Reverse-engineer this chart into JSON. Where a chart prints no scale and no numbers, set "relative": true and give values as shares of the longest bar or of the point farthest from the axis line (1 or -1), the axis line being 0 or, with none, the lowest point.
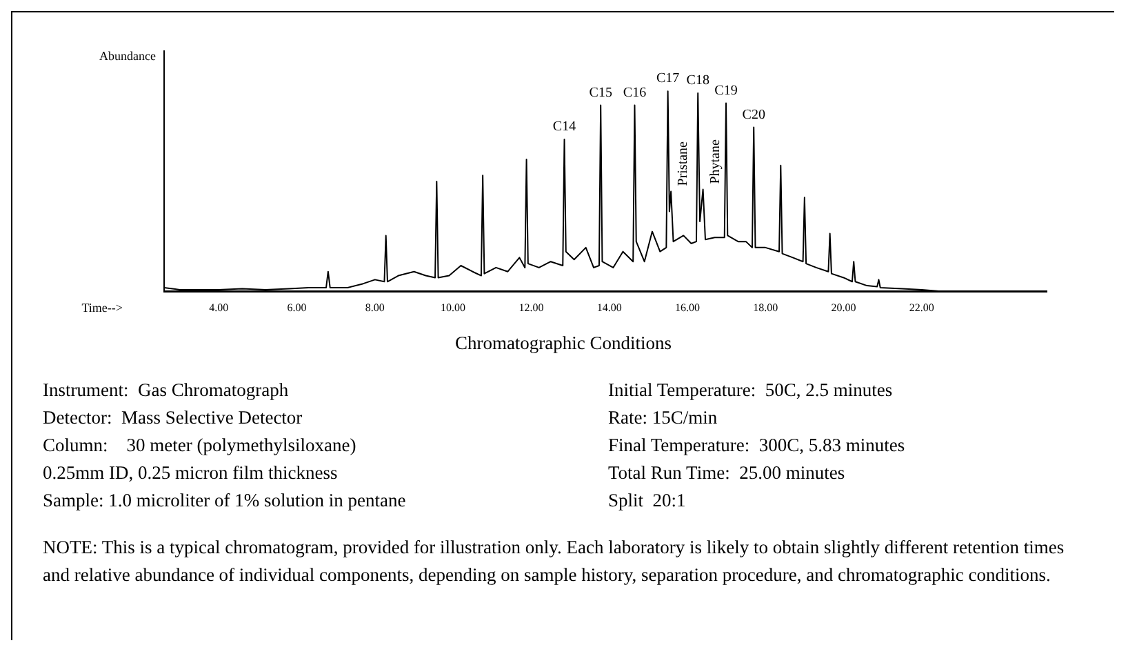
{
  "chart_data": {
    "type": "line",
    "relative": true,
    "xlabel": "Time-->",
    "ylabel": "Abundance",
    "color": "#000000",
    "marker": "none",
    "line_style": "solid",
    "grid": false,
    "legend": false,
    "tick_labels": "x",
    "xlim": [
      2.6,
      25.2
    ],
    "xticks": [
      {
        "value": 4,
        "label": "4.00"
      },
      {
        "value": 6,
        "label": "6.00"
      },
      {
        "value": 8,
        "label": "8.00"
      },
      {
        "value": 10,
        "label": "10.00"
      },
      {
        "value": 12,
        "label": "12.00"
      },
      {
        "value": 14,
        "label": "14.00"
      },
      {
        "value": 16,
        "label": "16.00"
      },
      {
        "value": 18,
        "label": "18.00"
      },
      {
        "value": 20,
        "label": "20.00"
      },
      {
        "value": 22,
        "label": "22.00"
      }
    ],
    "x": [
      2.6,
      3.0,
      3.5,
      4.0,
      4.6,
      5.2,
      5.8,
      6.3,
      6.75,
      6.8,
      6.85,
      7.3,
      7.7,
      8.0,
      8.24,
      8.28,
      8.32,
      8.6,
      9.0,
      9.3,
      9.54,
      9.58,
      9.62,
      9.9,
      10.2,
      10.5,
      10.72,
      10.76,
      10.8,
      11.1,
      11.4,
      11.7,
      11.84,
      11.88,
      11.92,
      12.2,
      12.5,
      12.81,
      12.85,
      12.89,
      13.1,
      13.4,
      13.6,
      13.74,
      13.78,
      13.82,
      14.1,
      14.35,
      14.61,
      14.65,
      14.69,
      14.9,
      15.1,
      15.3,
      15.46,
      15.5,
      15.54,
      15.58,
      15.64,
      15.9,
      16.1,
      16.23,
      16.27,
      16.32,
      16.4,
      16.46,
      16.7,
      16.95,
      16.99,
      17.03,
      17.3,
      17.5,
      17.66,
      17.7,
      17.74,
      18.0,
      18.35,
      18.39,
      18.43,
      18.7,
      18.96,
      19.0,
      19.04,
      19.3,
      19.61,
      19.65,
      19.69,
      20.0,
      20.22,
      20.26,
      20.3,
      20.6,
      20.86,
      20.9,
      20.94,
      21.5,
      22.0,
      22.6,
      23.5,
      25.2
    ],
    "values": [
      0.02,
      0.01,
      0.01,
      0.01,
      0.015,
      0.01,
      0.015,
      0.02,
      0.02,
      0.1,
      0.02,
      0.02,
      0.04,
      0.06,
      0.05,
      0.28,
      0.05,
      0.08,
      0.1,
      0.08,
      0.07,
      0.55,
      0.07,
      0.08,
      0.13,
      0.1,
      0.08,
      0.58,
      0.09,
      0.12,
      0.1,
      0.17,
      0.12,
      0.66,
      0.14,
      0.12,
      0.15,
      0.13,
      0.76,
      0.2,
      0.16,
      0.22,
      0.12,
      0.13,
      0.93,
      0.15,
      0.12,
      0.2,
      0.15,
      0.93,
      0.25,
      0.15,
      0.3,
      0.2,
      0.22,
      1.0,
      0.4,
      0.5,
      0.25,
      0.28,
      0.24,
      0.25,
      0.99,
      0.35,
      0.51,
      0.26,
      0.27,
      0.27,
      0.94,
      0.28,
      0.25,
      0.25,
      0.22,
      0.82,
      0.22,
      0.22,
      0.2,
      0.63,
      0.19,
      0.17,
      0.15,
      0.47,
      0.14,
      0.12,
      0.1,
      0.29,
      0.09,
      0.07,
      0.05,
      0.15,
      0.05,
      0.03,
      0.025,
      0.06,
      0.02,
      0.015,
      0.01,
      0.0,
      0.0,
      0.0
    ],
    "annotations": [
      {
        "text": "C14",
        "x": 12.85,
        "y": 0.76
      },
      {
        "text": "C15",
        "x": 13.78,
        "y": 0.93
      },
      {
        "text": "C16",
        "x": 14.65,
        "y": 0.93
      },
      {
        "text": "C17",
        "x": 15.5,
        "y": 1.0
      },
      {
        "text": "C18",
        "x": 16.27,
        "y": 0.99
      },
      {
        "text": "C19",
        "x": 16.99,
        "y": 0.94
      },
      {
        "text": "C20",
        "x": 17.7,
        "y": 0.82
      },
      {
        "text": "Pristane",
        "x": 15.58,
        "y": 0.5
      },
      {
        "text": "Phytane",
        "x": 16.4,
        "y": 0.51
      },
      "Chromatographic Conditions",
      "Instrument:  Gas Chromatograph",
      "Detector:  Mass Selective Detector",
      "Column:    30 meter (polymethylsiloxane)",
      "0.25mm ID, 0.25 micron film thickness",
      "Sample: 1.0 microliter of 1% solution in pentane",
      "Initial Temperature:  50C, 2.5 minutes",
      "Rate: 15C/min",
      "Final Temperature:  300C, 5.83 minutes",
      "Total Run Time:  25.00 minutes",
      "Split  20:1",
      "NOTE: This is a typical chromatogram, provided for illustration only.  Each laboratory is likely to obtain slightly different retention times and relative abundance of individual components, depending on sample history, separation procedure, and chromatographic conditions."
    ]
  }
}
